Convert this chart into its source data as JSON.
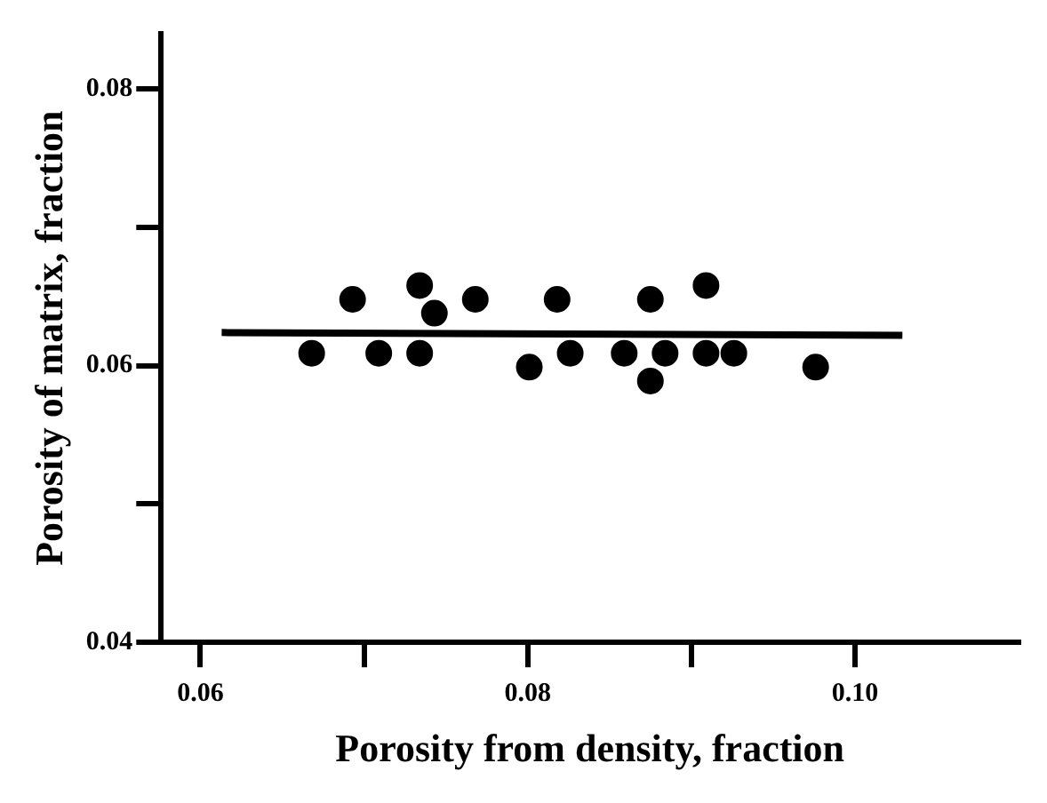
{
  "chart_data": {
    "type": "scatter",
    "xlabel": "Porosity from density, fraction",
    "ylabel": "Porosity of matrix, fraction",
    "xlim": [
      0.0576,
      0.11
    ],
    "xticks": [
      {
        "value": 0.06,
        "label": "0.06"
      },
      {
        "value": 0.07,
        "label": null
      },
      {
        "value": 0.08,
        "label": "0.08"
      },
      {
        "value": 0.09,
        "label": null
      },
      {
        "value": 0.1,
        "label": "0.10"
      }
    ],
    "ylim": [
      0.04,
      0.084
    ],
    "yticks": [
      {
        "value": 0.04,
        "label": "0.04"
      },
      {
        "value": 0.05,
        "label": null
      },
      {
        "value": 0.06,
        "label": "0.06"
      },
      {
        "value": 0.07,
        "label": null
      },
      {
        "value": 0.08,
        "label": "0.08"
      }
    ],
    "grid": false,
    "legend": false,
    "marker": "circle",
    "series": [
      {
        "color": "#000000",
        "x": [
          0.0668,
          0.0693,
          0.0709,
          0.0734,
          0.0734,
          0.0743,
          0.0768,
          0.0801,
          0.0818,
          0.0826,
          0.0859,
          0.0875,
          0.0875,
          0.0884,
          0.0909,
          0.0909,
          0.0926,
          0.0976
        ],
        "values": [
          0.0609,
          0.0648,
          0.0609,
          0.0658,
          0.0609,
          0.0638,
          0.0648,
          0.0599,
          0.0648,
          0.0609,
          0.0609,
          0.0648,
          0.0589,
          0.0609,
          0.0658,
          0.0609,
          0.0609,
          0.0599
        ]
      },
      {
        "type": "line",
        "color": "#000000",
        "marker": "none",
        "x": [
          0.0613,
          0.1029
        ],
        "values": [
          0.0624,
          0.0622
        ]
      }
    ]
  }
}
